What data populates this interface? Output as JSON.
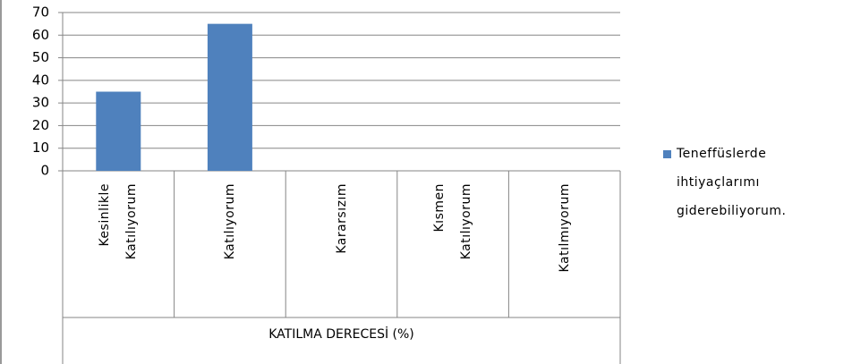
{
  "chart_data": {
    "type": "bar",
    "categories": [
      "Kesinlikle Katılıyorum",
      "Katılıyorum",
      "Kararsızım",
      "Kısmen Katılıyorum",
      "Katılmıyorum"
    ],
    "series": [
      {
        "name": "Teneffüslerde ihtiyaçlarımı giderebiliyorum.",
        "color": "#4f81bd",
        "values": [
          35,
          65,
          0,
          0,
          0
        ]
      }
    ],
    "x_label": "KATILMA DERECESİ (%)",
    "ylim": [
      0,
      70
    ],
    "yticks": [
      0,
      10,
      20,
      30,
      40,
      50,
      60,
      70
    ],
    "grid": true,
    "legend": "right"
  }
}
